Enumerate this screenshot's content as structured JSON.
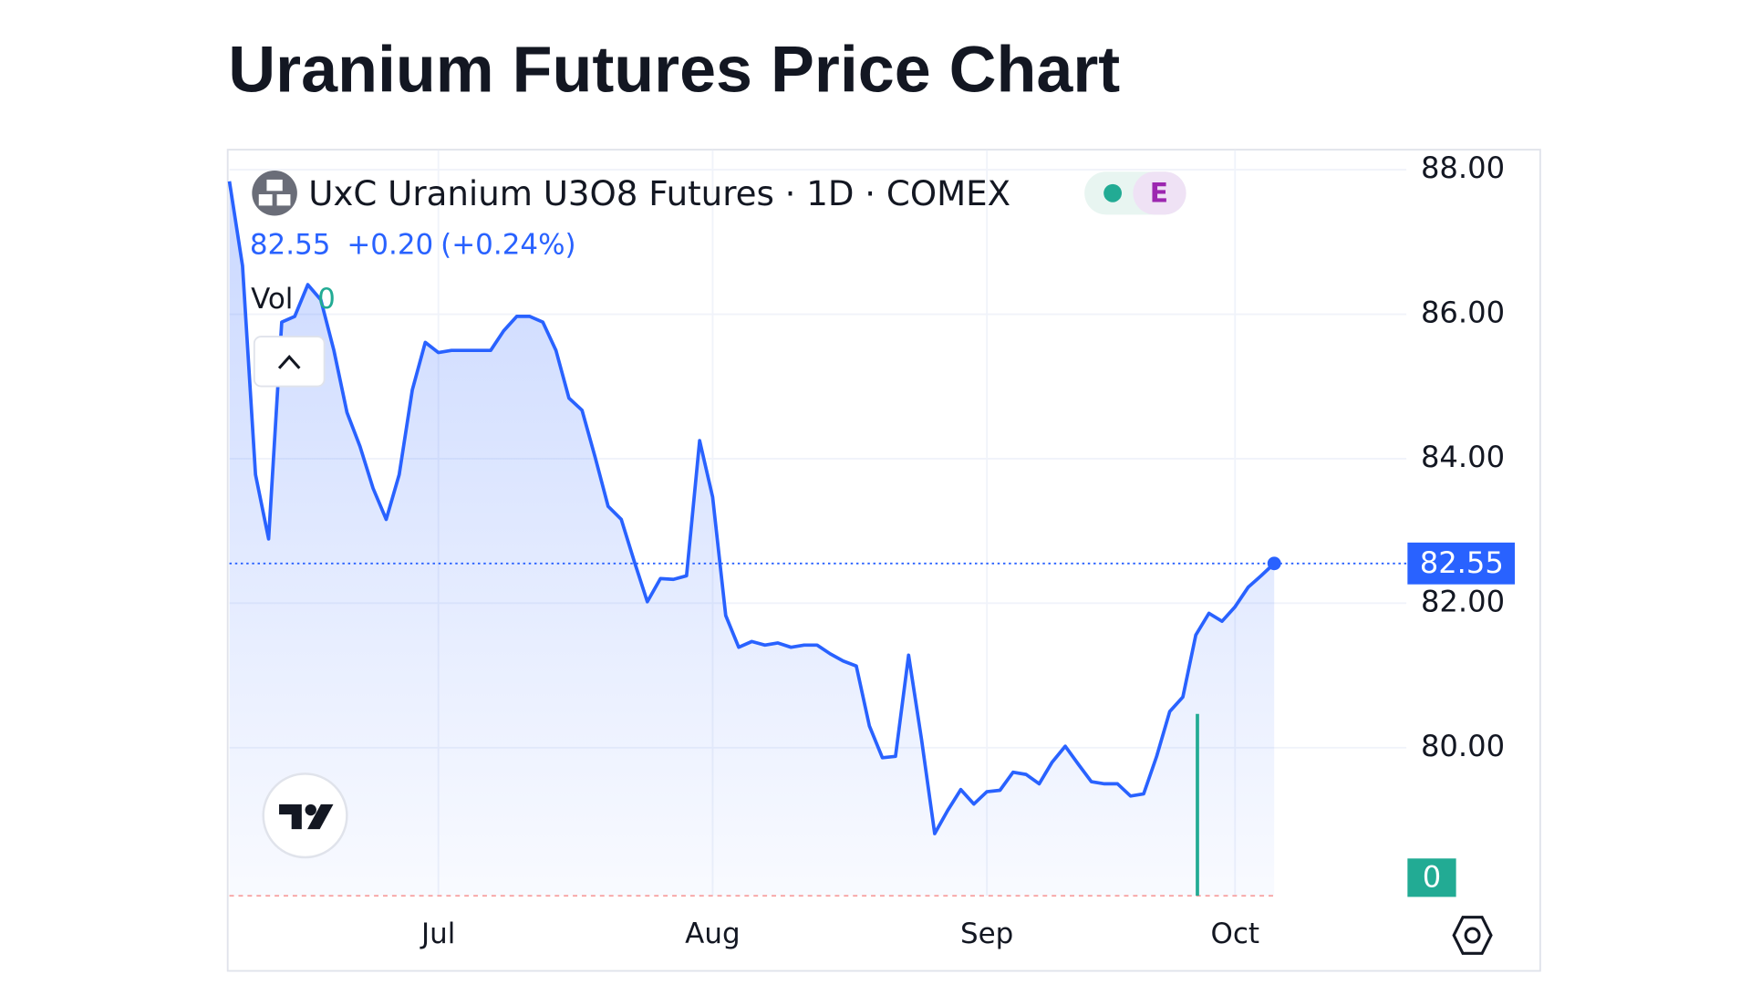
{
  "chart_data": {
    "type": "line",
    "title": "Uranium Futures Price Chart",
    "symbol_title": "UxC Uranium U3O8 Futures · 1D · COMEX",
    "badge": "E",
    "last_price": 82.55,
    "change": "+0.20",
    "change_pct": "(+0.24%)",
    "volume_label": "Vol",
    "volume": 0,
    "color": "#2962ff",
    "grid": true,
    "categories": [
      null,
      null,
      null,
      null,
      null,
      null,
      null,
      null,
      null,
      null,
      null,
      null,
      null,
      null,
      null,
      null,
      "Jul",
      null,
      null,
      null,
      null,
      null,
      null,
      null,
      null,
      null,
      null,
      null,
      null,
      null,
      null,
      null,
      null,
      null,
      null,
      null,
      null,
      "Aug",
      null,
      null,
      null,
      null,
      null,
      null,
      null,
      null,
      null,
      null,
      null,
      null,
      null,
      null,
      null,
      null,
      null,
      null,
      null,
      null,
      "Sep",
      null,
      null,
      null,
      null,
      null,
      null,
      null,
      null,
      null,
      null,
      null,
      null,
      null,
      null,
      null,
      null,
      null,
      null,
      "Oct",
      null,
      null,
      null
    ],
    "values": [
      87.84,
      86.67,
      83.78,
      82.89,
      85.89,
      85.97,
      86.41,
      86.2,
      85.5,
      84.64,
      84.17,
      83.59,
      83.16,
      83.78,
      84.95,
      85.61,
      85.47,
      85.5,
      85.5,
      85.5,
      85.5,
      85.77,
      85.97,
      85.97,
      85.89,
      85.5,
      84.84,
      84.67,
      84.02,
      83.34,
      83.16,
      82.58,
      82.02,
      82.34,
      82.33,
      82.38,
      84.25,
      83.47,
      81.83,
      81.39,
      81.47,
      81.42,
      81.45,
      81.39,
      81.42,
      81.42,
      81.3,
      81.2,
      81.13,
      80.3,
      79.86,
      79.88,
      81.28,
      80.11,
      78.81,
      79.13,
      79.42,
      79.22,
      79.39,
      79.41,
      79.66,
      79.63,
      79.5,
      79.8,
      80.02,
      79.77,
      79.53,
      79.5,
      79.5,
      79.33,
      79.36,
      79.88,
      80.5,
      80.7,
      81.56,
      81.86,
      81.75,
      81.95,
      82.22,
      82.38,
      82.55
    ],
    "ylim": [
      77.95,
      88.27
    ],
    "yticks": [
      {
        "value": 80,
        "label": "80.00"
      },
      {
        "value": 82,
        "label": "82.00"
      },
      {
        "value": 84,
        "label": "84.00"
      },
      {
        "value": 86,
        "label": "86.00"
      },
      {
        "value": 88,
        "label": "88.00"
      }
    ]
  }
}
